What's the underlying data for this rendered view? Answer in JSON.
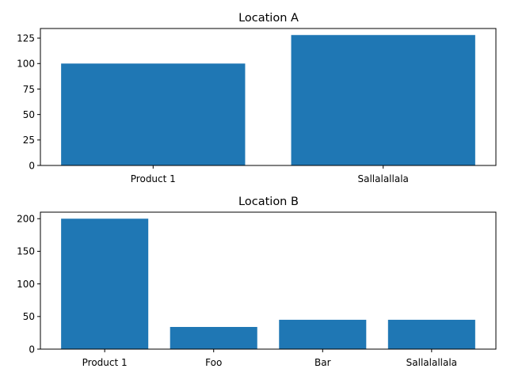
{
  "bar_color": "#1f77b4",
  "chart_data": [
    {
      "type": "bar",
      "title": "Location A",
      "xlabel": "",
      "ylabel": "",
      "categories": [
        "Product 1",
        "Sallalallala"
      ],
      "values": [
        100,
        128
      ],
      "ylim": [
        0,
        134.4
      ],
      "yticks": [
        0,
        25,
        50,
        75,
        100,
        125
      ],
      "grid": false
    },
    {
      "type": "bar",
      "title": "Location B",
      "xlabel": "",
      "ylabel": "",
      "categories": [
        "Product 1",
        "Foo",
        "Bar",
        "Sallalallala"
      ],
      "values": [
        200,
        34,
        45,
        45
      ],
      "ylim": [
        0,
        210
      ],
      "yticks": [
        0,
        50,
        100,
        150,
        200
      ],
      "grid": false
    }
  ]
}
